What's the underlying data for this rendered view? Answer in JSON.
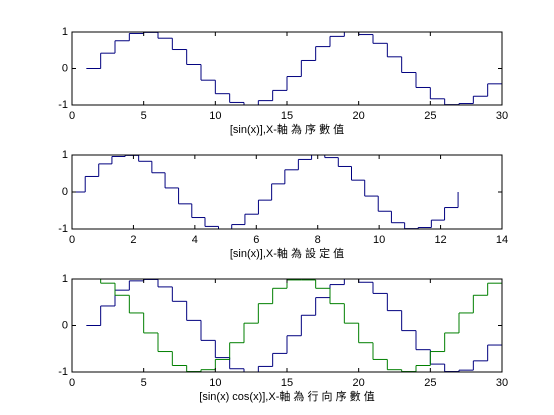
{
  "chart_data": [
    {
      "type": "stairs",
      "xlabel": "[sin(x)],X-軸 為 序 數 值",
      "x": [
        1,
        2,
        3,
        4,
        5,
        6,
        7,
        8,
        9,
        10,
        11,
        12,
        13,
        14,
        15,
        16,
        17,
        18,
        19,
        20,
        21,
        22,
        23,
        24,
        25,
        26,
        27,
        28,
        29,
        30
      ],
      "series": [
        {
          "color": "#00007f",
          "values": [
            0,
            0.42,
            0.76,
            0.96,
            0.99,
            0.83,
            0.52,
            0.11,
            -0.32,
            -0.69,
            -0.93,
            -1.0,
            -0.88,
            -0.6,
            -0.22,
            0.22,
            0.6,
            0.88,
            1.0,
            0.93,
            0.69,
            0.32,
            -0.11,
            -0.52,
            -0.83,
            -0.99,
            -0.96,
            -0.76,
            -0.42,
            0
          ]
        }
      ],
      "xlim": [
        0,
        30
      ],
      "xticks": [
        0,
        5,
        10,
        15,
        20,
        25,
        30
      ],
      "ylim": [
        -1,
        1
      ],
      "yticks": [
        -1,
        0,
        1
      ]
    },
    {
      "type": "stairs",
      "xlabel": "[sin(x)],X-軸 為 設 定 值",
      "x": [
        0,
        0.43,
        0.87,
        1.3,
        1.73,
        2.17,
        2.6,
        3.03,
        3.47,
        3.9,
        4.33,
        4.77,
        5.2,
        5.63,
        6.07,
        6.5,
        6.93,
        7.37,
        7.8,
        8.23,
        8.67,
        9.1,
        9.53,
        9.97,
        10.4,
        10.83,
        11.27,
        11.7,
        12.13,
        12.57
      ],
      "series": [
        {
          "color": "#00007f",
          "values": [
            0,
            0.42,
            0.76,
            0.96,
            0.99,
            0.83,
            0.52,
            0.11,
            -0.32,
            -0.69,
            -0.93,
            -1.0,
            -0.88,
            -0.6,
            -0.22,
            0.22,
            0.6,
            0.88,
            1.0,
            0.93,
            0.69,
            0.32,
            -0.11,
            -0.52,
            -0.83,
            -0.99,
            -0.96,
            -0.76,
            -0.42,
            0
          ]
        }
      ],
      "xlim": [
        0,
        14
      ],
      "xticks": [
        0,
        2,
        4,
        6,
        8,
        10,
        12,
        14
      ],
      "ylim": [
        -1,
        1
      ],
      "yticks": [
        -1,
        0,
        1
      ]
    },
    {
      "type": "stairs",
      "xlabel": "[sin(x) cos(x)],X-軸 為 行 向 序 數 值",
      "x": [
        1,
        2,
        3,
        4,
        5,
        6,
        7,
        8,
        9,
        10,
        11,
        12,
        13,
        14,
        15,
        16,
        17,
        18,
        19,
        20,
        21,
        22,
        23,
        24,
        25,
        26,
        27,
        28,
        29,
        30
      ],
      "series": [
        {
          "color": "#00007f",
          "values": [
            0,
            0.42,
            0.76,
            0.96,
            0.99,
            0.83,
            0.52,
            0.11,
            -0.32,
            -0.69,
            -0.93,
            -1.0,
            -0.88,
            -0.6,
            -0.22,
            0.22,
            0.6,
            0.88,
            1.0,
            0.93,
            0.69,
            0.32,
            -0.11,
            -0.52,
            -0.83,
            -0.99,
            -0.96,
            -0.76,
            -0.42,
            0
          ]
        },
        {
          "color": "#007f00",
          "values": [
            1,
            0.91,
            0.65,
            0.27,
            -0.16,
            -0.56,
            -0.86,
            -0.99,
            -0.95,
            -0.73,
            -0.37,
            0.05,
            0.47,
            0.8,
            0.98,
            0.98,
            0.8,
            0.47,
            0.05,
            -0.37,
            -0.73,
            -0.95,
            -0.99,
            -0.86,
            -0.56,
            -0.16,
            0.27,
            0.65,
            0.91,
            1
          ]
        }
      ],
      "xlim": [
        0,
        30
      ],
      "xticks": [
        0,
        5,
        10,
        15,
        20,
        25,
        30
      ],
      "ylim": [
        -1,
        1
      ],
      "yticks": [
        -1,
        0,
        1
      ]
    }
  ]
}
